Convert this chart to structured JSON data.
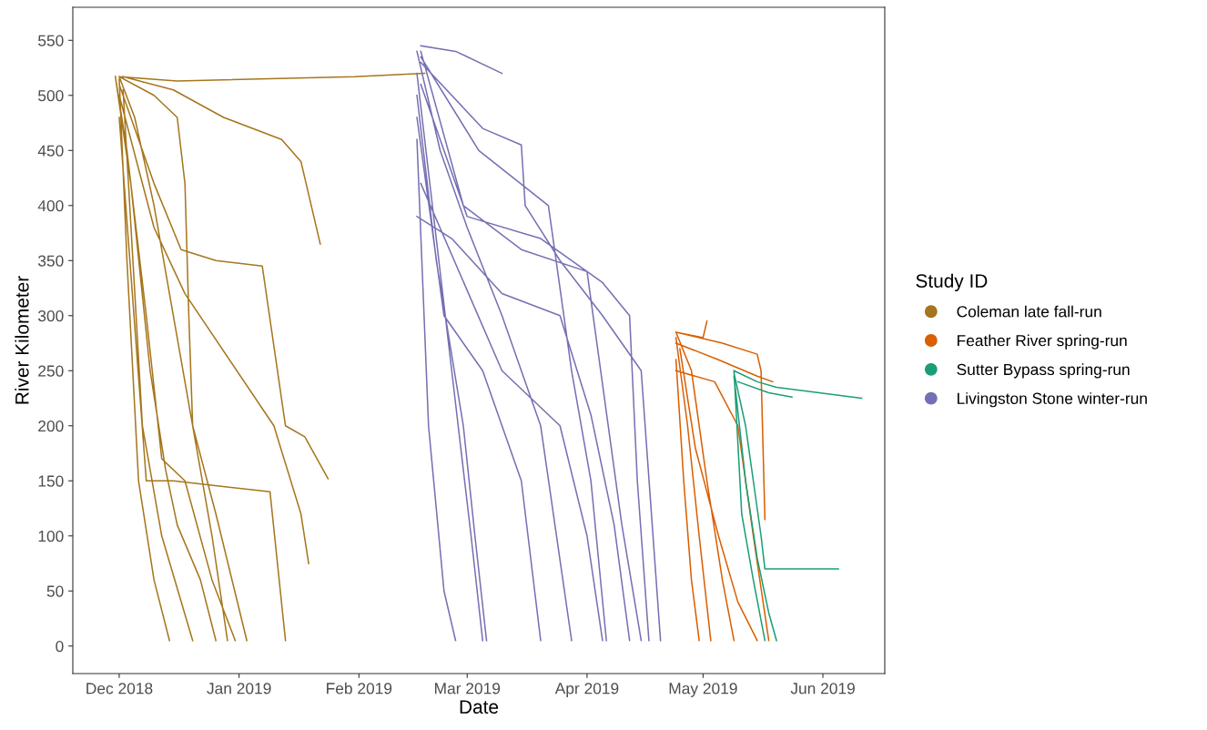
{
  "chart_data": {
    "type": "line",
    "xlabel": "Date",
    "ylabel": "River Kilometer",
    "legend_title": "Study ID",
    "legend": "right",
    "grid": false,
    "marker": "none",
    "line_style": "solid",
    "xlim": [
      "2018-11-19",
      "2019-06-17"
    ],
    "ylim": [
      -25,
      580
    ],
    "xticks": [
      {
        "value": "2018-12-01",
        "label": "Dec 2018"
      },
      {
        "value": "2019-01-01",
        "label": "Jan 2019"
      },
      {
        "value": "2019-02-01",
        "label": "Feb 2019"
      },
      {
        "value": "2019-03-01",
        "label": "Mar 2019"
      },
      {
        "value": "2019-04-01",
        "label": "Apr 2019"
      },
      {
        "value": "2019-05-01",
        "label": "May 2019"
      },
      {
        "value": "2019-06-01",
        "label": "Jun 2019"
      }
    ],
    "yticks": [
      0,
      50,
      100,
      150,
      200,
      250,
      300,
      350,
      400,
      450,
      500,
      550
    ],
    "series": [
      {
        "name": "Coleman late fall-run",
        "color": "#a6761d",
        "x": [
          "2018-12-01",
          "2018-12-05",
          "2018-12-10",
          "2018-12-15",
          "2018-12-20",
          "2018-12-25",
          "2018-12-29",
          null,
          "2018-11-30",
          "2018-12-03",
          "2018-12-08",
          "2018-12-12",
          "2018-12-18",
          "2018-12-25",
          "2018-12-31",
          null,
          "2018-11-30",
          "2018-12-04",
          "2018-12-09",
          "2018-12-13",
          "2018-12-16",
          "2018-12-22",
          "2018-12-26",
          null,
          "2018-12-01",
          "2018-12-10",
          "2018-12-16",
          "2018-12-18",
          "2018-12-19",
          "2018-12-20",
          "2018-12-26",
          "2019-01-03",
          null,
          "2018-12-01",
          "2018-12-16",
          "2019-01-31",
          "2019-02-18",
          null,
          "2018-12-02",
          "2018-12-15",
          "2018-12-28",
          "2019-01-12",
          "2019-01-17",
          "2019-01-22",
          null,
          "2018-12-01",
          "2018-12-10",
          "2018-12-17",
          "2018-12-26",
          "2019-01-07",
          "2019-01-13",
          "2019-01-18",
          "2019-01-24",
          null,
          "2018-12-01",
          "2018-12-10",
          "2018-12-18",
          "2019-01-10",
          "2019-01-17",
          "2019-01-19",
          null,
          "2018-12-01",
          "2018-12-08",
          "2018-12-15",
          "2019-01-09",
          "2019-01-13",
          null,
          "2018-12-02",
          "2018-12-07",
          "2018-12-12",
          "2018-12-20",
          null,
          "2018-12-01",
          "2018-12-03",
          "2018-12-06",
          "2018-12-10",
          "2018-12-14"
        ],
        "values": [
          517,
          480,
          400,
          300,
          200,
          100,
          5,
          null,
          517,
          450,
          300,
          170,
          150,
          60,
          5,
          null,
          517,
          420,
          250,
          160,
          110,
          60,
          5,
          null,
          517,
          500,
          480,
          420,
          300,
          200,
          120,
          5,
          null,
          517,
          513,
          517,
          520,
          null,
          517,
          505,
          480,
          460,
          440,
          365,
          null,
          510,
          420,
          360,
          350,
          345,
          200,
          190,
          152,
          null,
          500,
          380,
          320,
          200,
          120,
          75,
          null,
          480,
          150,
          150,
          140,
          5,
          null,
          505,
          200,
          100,
          5,
          null,
          515,
          350,
          150,
          60,
          5
        ]
      },
      {
        "name": "Feather River spring-run",
        "color": "#d95f02",
        "x": [
          "2019-04-24",
          "2019-04-28",
          "2019-05-02",
          "2019-05-06",
          "2019-05-09",
          null,
          "2019-04-24",
          "2019-04-27",
          "2019-04-30",
          "2019-05-03",
          null,
          "2019-04-24",
          "2019-05-05",
          "2019-05-15",
          "2019-05-19",
          null,
          "2019-04-24",
          "2019-05-06",
          "2019-05-15",
          "2019-05-16",
          "2019-05-17",
          null,
          "2019-04-25",
          "2019-04-29",
          "2019-05-05",
          "2019-05-10",
          "2019-05-15",
          null,
          "2019-04-24",
          "2019-04-26",
          "2019-04-28",
          "2019-04-30",
          null,
          "2019-04-24",
          "2019-05-01",
          "2019-05-02",
          null,
          "2019-04-24",
          "2019-05-04",
          "2019-05-10",
          "2019-05-14",
          "2019-05-18"
        ],
        "values": [
          285,
          250,
          150,
          60,
          5,
          null,
          280,
          200,
          100,
          5,
          null,
          275,
          260,
          245,
          240,
          null,
          285,
          275,
          265,
          250,
          115,
          null,
          270,
          180,
          100,
          40,
          5,
          null,
          260,
          150,
          60,
          5,
          null,
          285,
          280,
          295,
          null,
          250,
          240,
          200,
          100,
          5
        ]
      },
      {
        "name": "Sutter Bypass spring-run",
        "color": "#1b9e77",
        "x": [
          "2019-05-09",
          "2019-05-15",
          "2019-05-20",
          "2019-06-11",
          null,
          "2019-05-09",
          "2019-05-12",
          "2019-05-14",
          "2019-05-16",
          "2019-05-17",
          "2019-06-05",
          null,
          "2019-05-09",
          "2019-05-12",
          "2019-05-15",
          "2019-05-18",
          "2019-05-20",
          null,
          "2019-05-10",
          "2019-05-18",
          "2019-05-24",
          null,
          "2019-05-09",
          "2019-05-11",
          "2019-05-14",
          "2019-05-17"
        ],
        "values": [
          250,
          240,
          235,
          225,
          null,
          248,
          200,
          150,
          100,
          70,
          70,
          null,
          245,
          150,
          80,
          30,
          5,
          null,
          240,
          230,
          226,
          null,
          250,
          120,
          60,
          5
        ]
      },
      {
        "name": "Livingston Stone winter-run",
        "color": "#7570b3",
        "x": [
          "2019-02-17",
          "2019-02-26",
          "2019-03-10",
          null,
          "2019-02-16",
          "2019-02-22",
          "2019-03-01",
          "2019-03-10",
          "2019-03-20",
          "2019-03-28",
          null,
          "2019-02-16",
          "2019-02-20",
          "2019-02-25",
          "2019-03-02",
          "2019-03-05",
          null,
          "2019-02-17",
          "2019-03-05",
          "2019-03-15",
          "2019-03-16",
          "2019-03-25",
          "2019-04-05",
          "2019-04-15",
          "2019-04-20",
          null,
          "2019-02-16",
          "2019-02-21",
          "2019-02-28",
          "2019-03-03",
          "2019-03-06",
          null,
          "2019-02-17",
          "2019-02-28",
          "2019-03-15",
          "2019-04-01",
          "2019-04-10",
          "2019-04-15",
          null,
          "2019-02-16",
          "2019-02-23",
          "2019-03-05",
          "2019-03-15",
          "2019-03-20",
          null,
          "2019-02-17",
          "2019-03-01",
          "2019-03-20",
          "2019-04-05",
          "2019-04-12",
          "2019-04-14",
          "2019-04-17",
          null,
          "2019-02-16",
          "2019-02-19",
          "2019-02-23",
          "2019-02-26",
          null,
          "2019-02-17",
          "2019-03-10",
          "2019-03-25",
          "2019-04-01",
          "2019-04-05",
          null,
          "2019-02-17",
          "2019-03-04",
          "2019-03-22",
          "2019-03-28",
          "2019-04-02",
          "2019-04-06",
          null,
          "2019-02-16",
          "2019-02-25",
          "2019-03-10",
          "2019-03-25",
          "2019-04-02",
          "2019-04-08",
          "2019-04-12"
        ],
        "values": [
          545,
          540,
          520,
          null,
          540,
          450,
          380,
          300,
          200,
          5,
          null,
          520,
          400,
          250,
          100,
          5,
          null,
          530,
          470,
          455,
          400,
          350,
          300,
          250,
          5,
          null,
          500,
          350,
          200,
          100,
          5,
          null,
          540,
          400,
          360,
          340,
          110,
          5,
          null,
          480,
          300,
          250,
          150,
          5,
          null,
          510,
          390,
          370,
          330,
          300,
          150,
          5,
          null,
          460,
          200,
          50,
          5,
          null,
          420,
          250,
          200,
          100,
          5,
          null,
          535,
          450,
          400,
          250,
          150,
          5,
          null,
          390,
          370,
          320,
          300,
          210,
          110,
          5
        ]
      }
    ]
  }
}
